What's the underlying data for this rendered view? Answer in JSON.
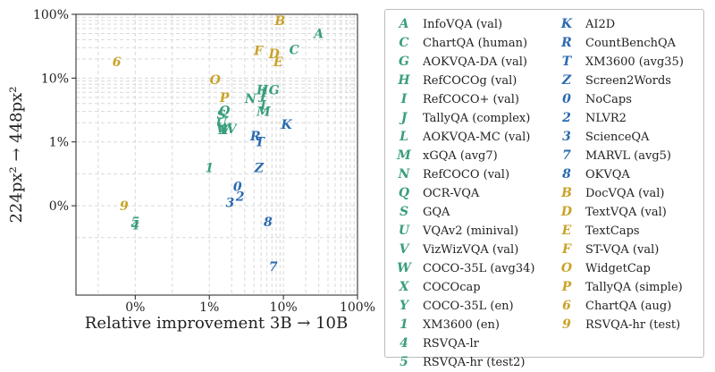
{
  "chart_data": {
    "type": "scatter",
    "xlabel": "Relative improvement 3B → 10B",
    "ylabel": "224px² → 448px²",
    "x_ticks": [
      "0%",
      "1%",
      "10%",
      "100%"
    ],
    "y_ticks": [
      "0%",
      "1%",
      "10%",
      "100%"
    ],
    "x_scale": "symlog",
    "y_scale": "symlog",
    "grid": true,
    "legend_position": "right",
    "colors": {
      "green": "#3a9e7e",
      "blue": "#2a6ab0",
      "gold": "#c9a227"
    },
    "series": [
      {
        "marker": "A",
        "name": "InfoVQA (val)",
        "color": "green",
        "x": 30,
        "y": 50
      },
      {
        "marker": "C",
        "name": "ChartQA (human)",
        "color": "green",
        "x": 14,
        "y": 28
      },
      {
        "marker": "G",
        "name": "AOKVQA-DA (val)",
        "color": "green",
        "x": 7.5,
        "y": 6.5
      },
      {
        "marker": "H",
        "name": "RefCOCOg (val)",
        "color": "green",
        "x": 5.2,
        "y": 6.5
      },
      {
        "marker": "I",
        "name": "RefCOCO+ (val)",
        "color": "green",
        "x": 5.5,
        "y": 6.0
      },
      {
        "marker": "J",
        "name": "TallyQA (complex)",
        "color": "green",
        "x": 5.3,
        "y": 5.5
      },
      {
        "marker": "L",
        "name": "AOKVQA-MC (val)",
        "color": "green",
        "x": 5.6,
        "y": 3.8
      },
      {
        "marker": "M",
        "name": "xGQA (avg7)",
        "color": "green",
        "x": 5.4,
        "y": 3.0
      },
      {
        "marker": "N",
        "name": "RefCOCO (val)",
        "color": "green",
        "x": 3.6,
        "y": 4.8
      },
      {
        "marker": "Q",
        "name": "OCR-VQA",
        "color": "green",
        "x": 1.6,
        "y": 3.1
      },
      {
        "marker": "S",
        "name": "GQA",
        "color": "green",
        "x": 1.45,
        "y": 2.7
      },
      {
        "marker": "U",
        "name": "VQAv2 (minival)",
        "color": "green",
        "x": 1.45,
        "y": 2.0
      },
      {
        "marker": "V",
        "name": "VizWizVQA (val)",
        "color": "green",
        "x": 2.0,
        "y": 1.6
      },
      {
        "marker": "W",
        "name": "COCO-35L (avg34)",
        "color": "green",
        "x": 1.55,
        "y": 1.65
      },
      {
        "marker": "X",
        "name": "COCOcap",
        "color": "green",
        "x": 1.55,
        "y": 1.55
      },
      {
        "marker": "Y",
        "name": "COCO-35L (en)",
        "color": "green",
        "x": 1.55,
        "y": 1.55
      },
      {
        "marker": "1",
        "name": "XM3600 (en)",
        "color": "green",
        "x": 1.0,
        "y": 0.6
      },
      {
        "marker": "4",
        "name": "RSVQA-lr",
        "color": "green",
        "x": 0,
        "y": -0.3
      },
      {
        "marker": "5",
        "name": "RSVQA-hr (test2)",
        "color": "green",
        "x": 0,
        "y": -0.25
      },
      {
        "marker": "K",
        "name": "AI2D",
        "color": "blue",
        "x": 11,
        "y": 1.9
      },
      {
        "marker": "R",
        "name": "CountBenchQA",
        "color": "blue",
        "x": 4.2,
        "y": 1.25
      },
      {
        "marker": "T",
        "name": "XM3600 (avg35)",
        "color": "blue",
        "x": 4.8,
        "y": 1.0
      },
      {
        "marker": "Z",
        "name": "Screen2Words",
        "color": "blue",
        "x": 4.7,
        "y": 0.6
      },
      {
        "marker": "0",
        "name": "NoCaps",
        "color": "blue",
        "x": 2.4,
        "y": 0.3
      },
      {
        "marker": "2",
        "name": "NLVR2",
        "color": "blue",
        "x": 2.6,
        "y": 0.15
      },
      {
        "marker": "3",
        "name": "ScienceQA",
        "color": "blue",
        "x": 1.9,
        "y": 0.05
      },
      {
        "marker": "7",
        "name": "MARVL (avg5)",
        "color": "blue",
        "x": 7.3,
        "y": -0.95
      },
      {
        "marker": "8",
        "name": "OKVQA",
        "color": "blue",
        "x": 6.2,
        "y": -0.25
      },
      {
        "marker": "B",
        "name": "DocVQA (val)",
        "color": "gold",
        "x": 9.0,
        "y": 80
      },
      {
        "marker": "D",
        "name": "TextVQA (val)",
        "color": "gold",
        "x": 7.5,
        "y": 24
      },
      {
        "marker": "E",
        "name": "TextCaps",
        "color": "gold",
        "x": 8.5,
        "y": 18
      },
      {
        "marker": "F",
        "name": "ST-VQA (val)",
        "color": "gold",
        "x": 4.6,
        "y": 27
      },
      {
        "marker": "O",
        "name": "WidgetCap",
        "color": "gold",
        "x": 1.2,
        "y": 9.5
      },
      {
        "marker": "P",
        "name": "TallyQA (simple)",
        "color": "gold",
        "x": 1.6,
        "y": 5.0
      },
      {
        "marker": "6",
        "name": "ChartQA (aug)",
        "color": "gold",
        "x": -0.25,
        "y": 18
      },
      {
        "marker": "9",
        "name": "RSVQA-hr (test)",
        "color": "gold",
        "x": -0.15,
        "y": 0
      }
    ]
  }
}
